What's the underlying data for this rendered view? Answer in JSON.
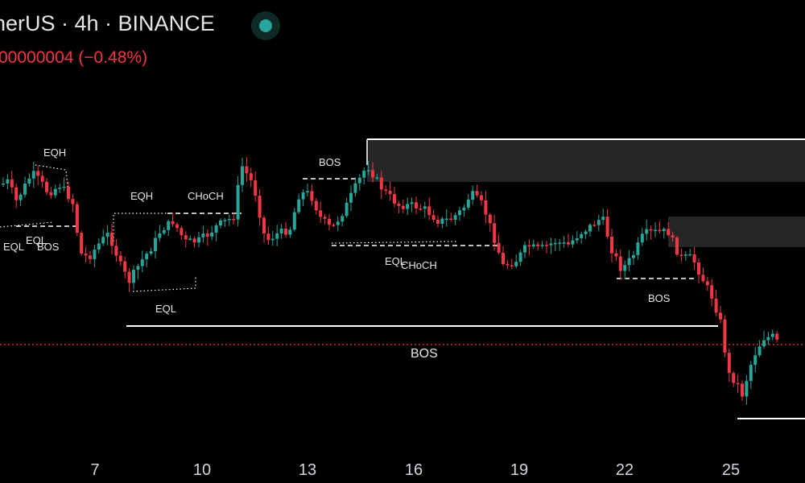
{
  "header": {
    "symbol_line": "herUS · 4h · BINANCE",
    "change_line": "00000004 (−0.48%)",
    "status": "market-open-indicator"
  },
  "colors": {
    "up": "#26a69a",
    "down": "#f23645",
    "structure_line": "#ffffff",
    "zone": "#262626",
    "price_line": "#f23645",
    "axis_text": "#d1d4dc"
  },
  "chart_data": {
    "type": "candlestick",
    "title": "",
    "x_axis_labels": [
      "7",
      "10",
      "13",
      "16",
      "19",
      "22",
      "25"
    ],
    "y_range_note": "price axis not shown",
    "annotations": [
      "EQH",
      "EQL",
      "BOS",
      "EQH",
      "CHoCH",
      "EQL",
      "BOS",
      "EQL",
      "CHoCH",
      "BOS",
      "BOS"
    ],
    "supply_zones": 2,
    "last_price_line": true
  }
}
